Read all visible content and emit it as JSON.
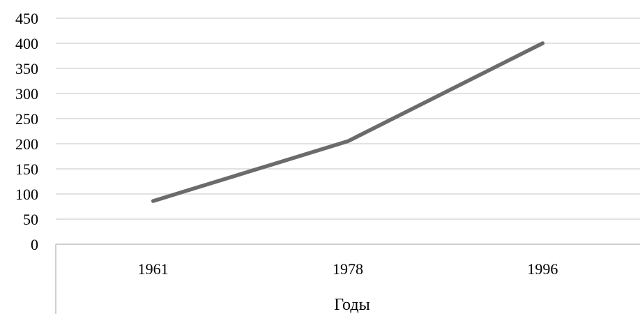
{
  "chart_data": {
    "type": "line",
    "title": "",
    "xlabel": "Годы",
    "ylabel": "",
    "categories": [
      "1961",
      "1978",
      "1996"
    ],
    "series": [
      {
        "values": [
          86,
          205,
          400
        ]
      }
    ],
    "ylim": [
      0,
      450
    ],
    "y_ticks": [
      "0",
      "50",
      "100",
      "150",
      "200",
      "250",
      "300",
      "350",
      "400",
      "450"
    ],
    "grid": true,
    "legend": "none",
    "colors": {
      "line": "#6b6b6b",
      "grid": "#d9d9d9",
      "axis": "#bfbfbf",
      "text": "#000000"
    }
  }
}
